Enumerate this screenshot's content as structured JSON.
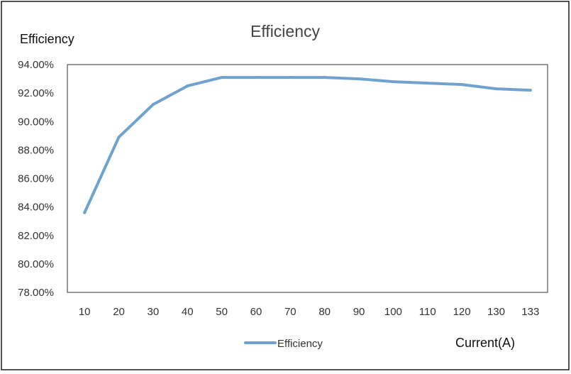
{
  "chart_data": {
    "type": "line",
    "title": "Efficiency",
    "ylabel": "Efficiency",
    "xlabel": "Current(A)",
    "categories": [
      "10",
      "20",
      "30",
      "40",
      "50",
      "60",
      "70",
      "80",
      "90",
      "100",
      "110",
      "120",
      "130",
      "133"
    ],
    "series": [
      {
        "name": "Efficiency",
        "color": "#6fa2cf",
        "values": [
          83.6,
          88.9,
          91.2,
          92.5,
          93.1,
          93.1,
          93.1,
          93.1,
          93.0,
          92.8,
          92.7,
          92.6,
          92.3,
          92.2
        ]
      }
    ],
    "ylim": [
      78,
      94
    ],
    "yticks": [
      78,
      80,
      82,
      84,
      86,
      88,
      90,
      92,
      94
    ],
    "ytick_labels": [
      "78.00%",
      "80.00%",
      "82.00%",
      "84.00%",
      "86.00%",
      "88.00%",
      "90.00%",
      "92.00%",
      "94.00%"
    ],
    "grid": true,
    "legend": "bottom-center"
  }
}
